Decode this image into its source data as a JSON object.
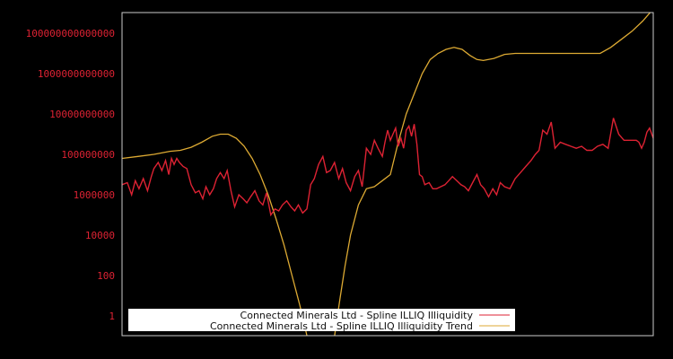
{
  "chart_data": {
    "type": "line",
    "title": "",
    "xlabel": "",
    "ylabel": "",
    "yscale": "log",
    "y_ticks": [
      "100000000000000",
      "1000000000000",
      "10000000000",
      "100000000",
      "1000000",
      "10000",
      "100",
      "1"
    ],
    "y_tick_log10": [
      14,
      12,
      10,
      8,
      6,
      4,
      2,
      0
    ],
    "ylim_log10": [
      -1,
      15
    ],
    "x_ticks": [],
    "grid": false,
    "legend_position": "lower center",
    "background": "#000000",
    "frame_color": "#cccccc",
    "series": [
      {
        "name": "Connected Minerals Ltd - Spline ILLIQ Illiquidity",
        "color": "#dd2233",
        "x_frac": [
          0.0,
          0.01,
          0.018,
          0.025,
          0.032,
          0.04,
          0.048,
          0.055,
          0.06,
          0.068,
          0.075,
          0.082,
          0.088,
          0.093,
          0.098,
          0.103,
          0.108,
          0.115,
          0.122,
          0.13,
          0.138,
          0.145,
          0.152,
          0.158,
          0.165,
          0.172,
          0.178,
          0.185,
          0.192,
          0.198,
          0.205,
          0.212,
          0.22,
          0.228,
          0.235,
          0.242,
          0.25,
          0.258,
          0.265,
          0.272,
          0.28,
          0.288,
          0.295,
          0.302,
          0.31,
          0.318,
          0.325,
          0.332,
          0.34,
          0.348,
          0.355,
          0.362,
          0.37,
          0.378,
          0.385,
          0.392,
          0.4,
          0.408,
          0.415,
          0.422,
          0.43,
          0.438,
          0.445,
          0.452,
          0.46,
          0.468,
          0.475,
          0.482,
          0.49,
          0.495,
          0.5,
          0.505,
          0.51,
          0.515,
          0.52,
          0.525,
          0.53,
          0.535,
          0.54,
          0.545,
          0.55,
          0.555,
          0.56,
          0.565,
          0.57,
          0.578,
          0.585,
          0.592,
          0.6,
          0.608,
          0.615,
          0.622,
          0.63,
          0.638,
          0.645,
          0.652,
          0.66,
          0.668,
          0.675,
          0.682,
          0.69,
          0.698,
          0.705,
          0.712,
          0.72,
          0.73,
          0.74,
          0.75,
          0.76,
          0.77,
          0.778,
          0.785,
          0.792,
          0.8,
          0.808,
          0.815,
          0.825,
          0.835,
          0.845,
          0.855,
          0.865,
          0.875,
          0.885,
          0.895,
          0.905,
          0.915,
          0.925,
          0.935,
          0.945,
          0.955,
          0.963,
          0.968,
          0.973,
          0.978,
          0.983,
          0.988,
          0.993,
          1.0
        ],
        "log10_values": [
          6.5,
          6.6,
          6.0,
          6.7,
          6.3,
          6.8,
          6.2,
          6.9,
          7.3,
          7.6,
          7.2,
          7.7,
          7.0,
          7.8,
          7.5,
          7.8,
          7.6,
          7.4,
          7.3,
          6.5,
          6.1,
          6.2,
          5.8,
          6.4,
          6.0,
          6.3,
          6.8,
          7.1,
          6.8,
          7.2,
          6.2,
          5.4,
          6.0,
          5.8,
          5.6,
          5.9,
          6.2,
          5.7,
          5.5,
          6.1,
          5.0,
          5.3,
          5.2,
          5.5,
          5.7,
          5.4,
          5.2,
          5.5,
          5.1,
          5.3,
          6.5,
          6.8,
          7.5,
          7.9,
          7.1,
          7.2,
          7.6,
          6.8,
          7.3,
          6.6,
          6.2,
          6.9,
          7.2,
          6.4,
          8.3,
          8.0,
          8.7,
          8.3,
          7.9,
          8.6,
          9.2,
          8.7,
          9.0,
          9.3,
          8.4,
          8.8,
          8.3,
          9.2,
          9.4,
          8.9,
          9.5,
          8.5,
          7.0,
          6.9,
          6.5,
          6.6,
          6.3,
          6.3,
          6.4,
          6.5,
          6.7,
          6.9,
          6.7,
          6.5,
          6.4,
          6.2,
          6.6,
          7.0,
          6.5,
          6.3,
          5.9,
          6.3,
          6.0,
          6.6,
          6.4,
          6.3,
          6.8,
          7.1,
          7.4,
          7.7,
          8.0,
          8.2,
          9.2,
          9.0,
          9.6,
          8.3,
          8.6,
          8.5,
          8.4,
          8.3,
          8.4,
          8.2,
          8.2,
          8.4,
          8.5,
          8.3,
          9.8,
          9.0,
          8.7,
          8.7,
          8.7,
          8.7,
          8.6,
          8.3,
          8.6,
          9.1,
          9.3,
          8.8,
          9.2,
          10.1
        ],
        "note": "values approximate, read from pixel trace; log10 of illiquidity"
      },
      {
        "name": "Connected Minerals Ltd - Spline ILLIQ Illiquidity Trend",
        "color": "#ddaa33",
        "x_frac": [
          0.0,
          0.03,
          0.06,
          0.09,
          0.11,
          0.13,
          0.15,
          0.17,
          0.185,
          0.2,
          0.215,
          0.23,
          0.245,
          0.26,
          0.275,
          0.29,
          0.305,
          0.32,
          0.335,
          0.35,
          0.365,
          0.38,
          0.392,
          0.4,
          0.41,
          0.42,
          0.43,
          0.445,
          0.46,
          0.475,
          0.49,
          0.505,
          0.52,
          0.535,
          0.55,
          0.565,
          0.58,
          0.595,
          0.61,
          0.625,
          0.64,
          0.655,
          0.668,
          0.68,
          0.7,
          0.72,
          0.74,
          0.76,
          0.78,
          0.8,
          0.82,
          0.84,
          0.86,
          0.88,
          0.9,
          0.92,
          0.94,
          0.96,
          0.98,
          1.0
        ],
        "log10_values": [
          7.8,
          7.9,
          8.0,
          8.15,
          8.2,
          8.35,
          8.6,
          8.9,
          9.0,
          9.0,
          8.8,
          8.4,
          7.8,
          7.0,
          6.0,
          4.8,
          3.5,
          2.0,
          0.5,
          -1.2,
          -2.5,
          -3.0,
          -2.5,
          -1.0,
          0.8,
          2.5,
          4.0,
          5.5,
          6.3,
          6.4,
          6.7,
          7.0,
          8.6,
          10.0,
          11.0,
          12.0,
          12.7,
          13.0,
          13.2,
          13.3,
          13.2,
          12.9,
          12.7,
          12.65,
          12.75,
          12.95,
          13.0,
          13.0,
          13.0,
          13.0,
          13.0,
          13.0,
          13.0,
          13.0,
          13.0,
          13.3,
          13.7,
          14.1,
          14.6,
          15.2
        ],
        "note": "values approximate; trend dips below plotted range near x≈0.35–0.43"
      }
    ]
  },
  "legend": {
    "items": [
      {
        "label": "Connected Minerals Ltd - Spline ILLIQ Illiquidity",
        "color": "#dd2233"
      },
      {
        "label": "Connected Minerals Ltd - Spline ILLIQ Illiquidity Trend",
        "color": "#ddaa33"
      }
    ]
  }
}
